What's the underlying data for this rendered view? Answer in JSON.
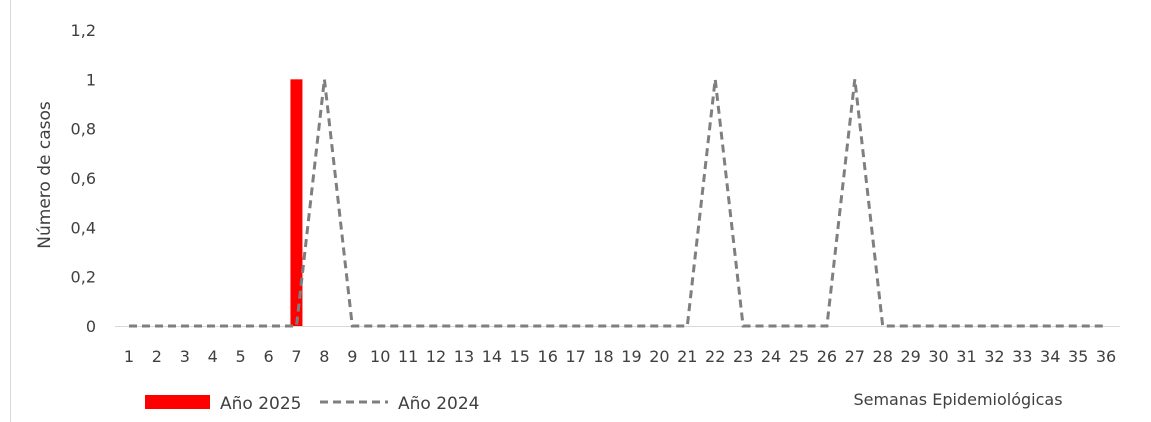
{
  "chart_data": {
    "type": "bar",
    "title": "",
    "xlabel": "Semanas Epidemiológicas",
    "ylabel": "Número de casos",
    "ylim": [
      0,
      1.2
    ],
    "yticks": [
      "0",
      "0,2",
      "0,4",
      "0,6",
      "0,8",
      "1",
      "1,2"
    ],
    "categories": [
      "1",
      "2",
      "3",
      "4",
      "5",
      "6",
      "7",
      "8",
      "9",
      "10",
      "11",
      "12",
      "13",
      "14",
      "15",
      "16",
      "17",
      "18",
      "19",
      "20",
      "21",
      "22",
      "23",
      "24",
      "25",
      "26",
      "27",
      "28",
      "29",
      "30",
      "31",
      "32",
      "33",
      "34",
      "35",
      "36"
    ],
    "series": [
      {
        "name": "Año 2025",
        "type": "bar",
        "color": "#ff0000",
        "values": [
          0,
          0,
          0,
          0,
          0,
          0,
          1,
          0,
          0,
          0,
          0,
          0,
          0,
          0,
          0,
          0,
          0,
          0,
          0,
          0,
          0,
          0,
          0,
          0,
          0,
          0,
          0,
          0,
          0,
          0,
          0,
          0,
          0,
          0,
          0,
          0
        ]
      },
      {
        "name": "Año 2024",
        "type": "line",
        "style": "dashed",
        "color": "#7f7f7f",
        "values": [
          0,
          0,
          0,
          0,
          0,
          0,
          0,
          1,
          0,
          0,
          0,
          0,
          0,
          0,
          0,
          0,
          0,
          0,
          0,
          0,
          0,
          1,
          0,
          0,
          0,
          0,
          1,
          0,
          0,
          0,
          0,
          0,
          0,
          0,
          0,
          0
        ]
      }
    ],
    "grid": false,
    "legend": "bottom-left"
  }
}
